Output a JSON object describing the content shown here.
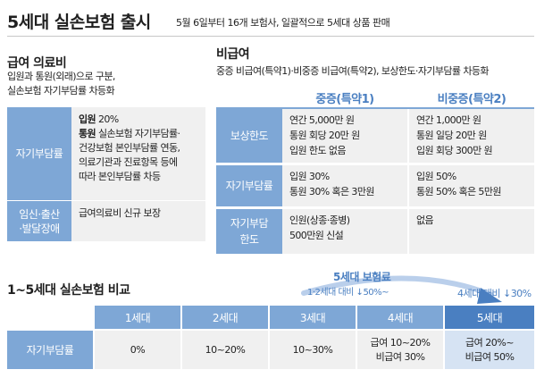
{
  "header": {
    "title": "5세대 실손보험 출시",
    "subtitle": "5월 6일부터 16개 보험사, 일괄적으로 5세대 상품 판매"
  },
  "benefit": {
    "heading": "급여 의료비",
    "description": [
      "입원과 통원(외래)으로 구분,",
      "실손보험 자기부담률 차등화"
    ],
    "rows": [
      {
        "label": "자기부담률",
        "lines": [
          {
            "bold": "입원",
            "text": " 20%"
          },
          {
            "bold": "통원",
            "text": " 실손보험 자기부담률·"
          },
          {
            "bold": "",
            "text": "건강보험 본인부담률 연동,"
          },
          {
            "bold": "",
            "text": "의료기관과 진료항목 등에"
          },
          {
            "bold": "",
            "text": "따라 본인부담률 차등"
          }
        ]
      },
      {
        "label": [
          "임신·출산",
          "·발달장애"
        ],
        "lines": [
          {
            "bold": "",
            "text": "급여의료비 신규 보장"
          }
        ]
      }
    ]
  },
  "nonbenefit": {
    "heading": "비급여",
    "description": "중증 비급여(특약1)·비중증 비급여(특약2), 보상한도·자기부담률 차등화",
    "columns": [
      "중증(특약1)",
      "비중증(특약2)"
    ],
    "rows": [
      {
        "label": "보상한도",
        "severe": [
          "연간 5,000만 원",
          "통원 회당 20만 원",
          "입원 한도 없음"
        ],
        "nonsevere": [
          "연간 1,000만 원",
          "통원 일당 20만 원",
          "입원 회당 300만 원"
        ]
      },
      {
        "label": "자기부담률",
        "severe": [
          "입원 30%",
          "통원 30% 혹은 3만원"
        ],
        "nonsevere": [
          "입원 50%",
          "통원 50% 혹은 5만원"
        ]
      },
      {
        "label": [
          "자기부담",
          "한도"
        ],
        "severe": [
          "인원(상종·종병)",
          "500만원 신설"
        ],
        "nonsevere": [
          "없음"
        ]
      }
    ]
  },
  "comparison": {
    "heading": "1~5세대 실손보험 비교",
    "premium_title": "5세대 보험료",
    "premium_note_1": "1·2세대 대비 ↓50%~",
    "premium_note_2": "4세대 대비 ↓30%",
    "row_label": "자기부담률",
    "generations": [
      {
        "name": "1세대",
        "value": [
          "0%"
        ]
      },
      {
        "name": "2세대",
        "value": [
          "10~20%"
        ]
      },
      {
        "name": "3세대",
        "value": [
          "10~30%"
        ]
      },
      {
        "name": "4세대",
        "value": [
          "급여 10~20%",
          "비급여 30%"
        ]
      },
      {
        "name": "5세대",
        "value": [
          "급여 20%~",
          "비급여 50%"
        ]
      }
    ]
  },
  "colors": {
    "accent": "#7ea7d6",
    "accent_dark": "#4a7fc1",
    "cell_bg": "#f0f0f0"
  }
}
